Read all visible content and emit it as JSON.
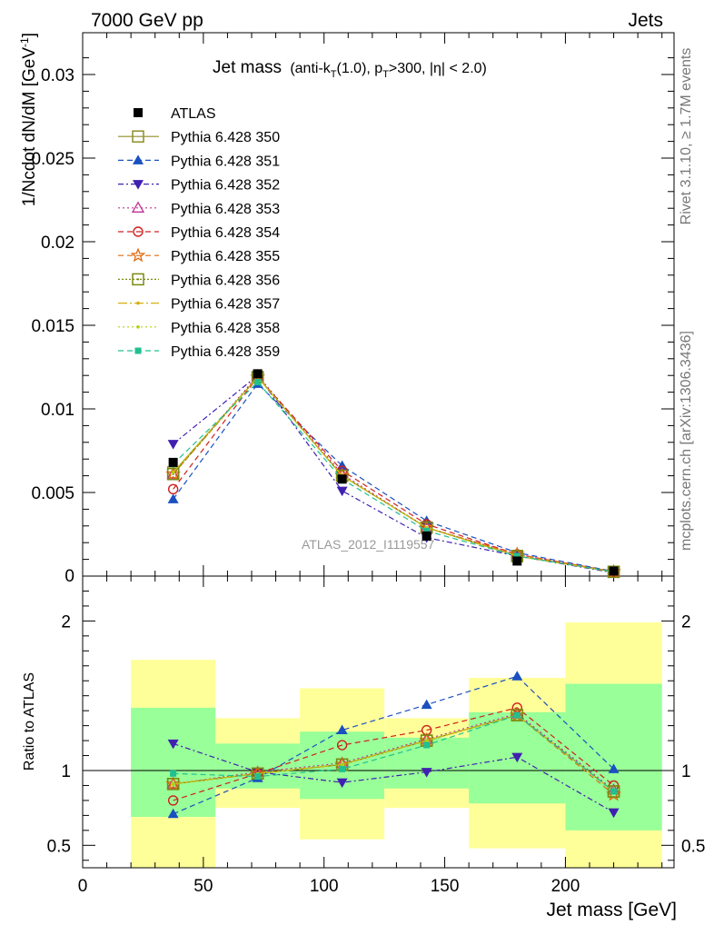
{
  "header": {
    "left": "7000 GeV pp",
    "right": "Jets"
  },
  "side_labels": {
    "rivet": "Rivet 3.1.10, ≥ 1.7M events",
    "mcplots": "mcplots.cern.ch [arXiv:1306.3436]"
  },
  "watermark": "ATLAS_2012_I1119557",
  "title": {
    "main": "Jet mass",
    "sub_pre": "(anti-k",
    "sub_T1": "T",
    "sub_mid": "(1.0), p",
    "sub_T2": "T",
    "sub_post": ">300, |η| < 2.0)"
  },
  "axes": {
    "top_ylabel": "1/Ncdot dN/dM [GeV",
    "top_ylabel_sup": "-1",
    "top_ylabel_close": "]",
    "ratio_ylabel": "Ratio to ATLAS",
    "xlabel": "Jet mass [GeV]"
  },
  "chart_data": {
    "type": "line",
    "x_edges": [
      20,
      55,
      90,
      125,
      160,
      200,
      240
    ],
    "x": [
      37.5,
      72.5,
      107.5,
      142.5,
      180,
      220
    ],
    "xlim": [
      0,
      245
    ],
    "x_ticks": [
      0,
      50,
      100,
      150,
      200
    ],
    "top": {
      "ylim": [
        0,
        0.0325
      ],
      "y_ticks": [
        {
          "v": 0.005,
          "label": "0.005"
        },
        {
          "v": 0.01,
          "label": "0.01"
        },
        {
          "v": 0.015,
          "label": "0.015"
        },
        {
          "v": 0.02,
          "label": "0.02"
        },
        {
          "v": 0.025,
          "label": "0.025"
        },
        {
          "v": 0.03,
          "label": "0.03"
        }
      ],
      "y_zero_label": "0",
      "data": {
        "name": "ATLAS",
        "values": [
          0.0068,
          0.0121,
          0.0058,
          0.0024,
          0.0009,
          0.0003
        ]
      }
    },
    "ratio": {
      "ylim": [
        0.35,
        2.3
      ],
      "y_ticks": [
        {
          "v": 0.5,
          "label": "0.5"
        },
        {
          "v": 1,
          "label": "1"
        },
        {
          "v": 2,
          "label": "2"
        }
      ],
      "band_green": [
        [
          0.69,
          1.42
        ],
        [
          0.88,
          1.18
        ],
        [
          0.81,
          1.26
        ],
        [
          0.88,
          1.22
        ],
        [
          0.78,
          1.39
        ],
        [
          0.6,
          1.58
        ]
      ],
      "band_yellow": [
        [
          0.35,
          1.74
        ],
        [
          0.75,
          1.35
        ],
        [
          0.54,
          1.55
        ],
        [
          0.75,
          1.35
        ],
        [
          0.48,
          1.62
        ],
        [
          0.35,
          1.99
        ]
      ]
    },
    "series": [
      {
        "name": "Pythia 6.428 350",
        "color": "#8e8e2a",
        "marker": "open-square",
        "dash": "",
        "values": [
          0.0062,
          0.0119,
          0.006,
          0.0029,
          0.0012,
          0.00026
        ],
        "ratio": [
          0.91,
          0.98,
          1.04,
          1.2,
          1.37,
          0.86
        ]
      },
      {
        "name": "Pythia 6.428 351",
        "color": "#1a50c0",
        "marker": "filled-triangle-up",
        "dash": "6,4",
        "values": [
          0.0046,
          0.0115,
          0.0066,
          0.0033,
          0.0014,
          0.00028
        ],
        "ratio": [
          0.71,
          0.95,
          1.27,
          1.44,
          1.63,
          1.01
        ]
      },
      {
        "name": "Pythia 6.428 352",
        "color": "#4020b0",
        "marker": "filled-triangle-down",
        "dash": "6,3,2,3",
        "values": [
          0.0079,
          0.012,
          0.0051,
          0.0023,
          0.0012,
          0.0002
        ],
        "ratio": [
          1.18,
          0.99,
          0.92,
          0.99,
          1.09,
          0.72
        ]
      },
      {
        "name": "Pythia 6.428 353",
        "color": "#c03090",
        "marker": "open-triangle-up",
        "dash": "2,3",
        "values": [
          0.0061,
          0.012,
          0.0061,
          0.0029,
          0.0013,
          0.00025
        ],
        "ratio": [
          0.91,
          0.99,
          1.05,
          1.21,
          1.38,
          0.87
        ]
      },
      {
        "name": "Pythia 6.428 354",
        "color": "#d02020",
        "marker": "open-circle",
        "dash": "6,4",
        "values": [
          0.0052,
          0.0119,
          0.0063,
          0.0031,
          0.0013,
          0.00027
        ],
        "ratio": [
          0.8,
          0.98,
          1.17,
          1.27,
          1.42,
          0.9
        ]
      },
      {
        "name": "Pythia 6.428 355",
        "color": "#e06a10",
        "marker": "open-star",
        "dash": "6,4",
        "values": [
          0.0061,
          0.0119,
          0.006,
          0.0029,
          0.0013,
          0.00025
        ],
        "ratio": [
          0.91,
          0.98,
          1.04,
          1.2,
          1.37,
          0.84
        ]
      },
      {
        "name": "Pythia 6.428 356",
        "color": "#7a8a10",
        "marker": "open-square-dot",
        "dash": "2,2",
        "values": [
          0.0061,
          0.0119,
          0.006,
          0.0029,
          0.0012,
          0.00025
        ],
        "ratio": [
          0.91,
          0.98,
          1.04,
          1.2,
          1.37,
          0.86
        ]
      },
      {
        "name": "Pythia 6.428 357",
        "color": "#d4b010",
        "marker": "small-dot",
        "dash": "10,3,2,3",
        "values": [
          0.0062,
          0.0119,
          0.006,
          0.0029,
          0.0012,
          0.00025
        ],
        "ratio": [
          0.91,
          0.98,
          1.04,
          1.2,
          1.37,
          0.86
        ]
      },
      {
        "name": "Pythia 6.428 358",
        "color": "#b0d010",
        "marker": "small-dot",
        "dash": "2,3",
        "values": [
          0.0062,
          0.0119,
          0.006,
          0.0029,
          0.0012,
          0.00025
        ],
        "ratio": [
          0.91,
          0.98,
          1.04,
          1.2,
          1.37,
          0.86
        ]
      },
      {
        "name": "Pythia 6.428 359",
        "color": "#20c090",
        "marker": "filled-square-small",
        "dash": "6,4",
        "values": [
          0.0067,
          0.0116,
          0.0058,
          0.0027,
          0.0012,
          0.00026
        ],
        "ratio": [
          0.98,
          0.96,
          1.01,
          1.17,
          1.37,
          0.86
        ]
      }
    ]
  }
}
